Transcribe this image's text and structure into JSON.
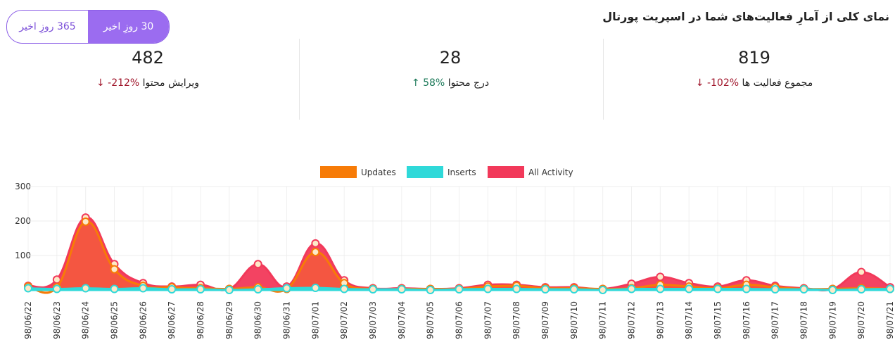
{
  "header": {
    "title": "نمای کلی از آمارِ فعالیت‌های شما در اسپریت پورتال",
    "range_options": [
      {
        "label": "365 روزِ اخیر",
        "active": false
      },
      {
        "label": "30 روزِ اخیر",
        "active": true
      }
    ]
  },
  "stats": [
    {
      "value": "819",
      "label": "مجموع فعالیت ها",
      "change": "-102%",
      "arrow": "↓",
      "direction": "down"
    },
    {
      "value": "28",
      "label": "درج محتوا",
      "change": "58%",
      "arrow": "↑",
      "direction": "up"
    },
    {
      "value": "482",
      "label": "ویرایش محتوا",
      "change": "-212%",
      "arrow": "↓",
      "direction": "down"
    }
  ],
  "chart_data": {
    "type": "area",
    "categories": [
      "98/06/22",
      "98/06/23",
      "98/06/24",
      "98/06/25",
      "98/06/26",
      "98/06/27",
      "98/06/28",
      "98/06/29",
      "98/06/30",
      "98/06/31",
      "98/07/01",
      "98/07/02",
      "98/07/03",
      "98/07/04",
      "98/07/05",
      "98/07/06",
      "98/07/07",
      "98/07/08",
      "98/07/09",
      "98/07/10",
      "98/07/11",
      "98/07/12",
      "98/07/13",
      "98/07/14",
      "98/07/15",
      "98/07/16",
      "98/07/17",
      "98/07/18",
      "98/07/19",
      "98/07/20",
      "98/07/21"
    ],
    "series": [
      {
        "name": "Updates",
        "color": "#f77b07",
        "values": [
          10,
          8,
          198,
          60,
          12,
          8,
          5,
          3,
          8,
          3,
          110,
          20,
          3,
          3,
          3,
          3,
          10,
          12,
          5,
          5,
          3,
          5,
          15,
          10,
          5,
          15,
          8,
          3,
          3,
          5,
          3
        ]
      },
      {
        "name": "Inserts",
        "color": "#2fd9d9",
        "values": [
          5,
          3,
          5,
          3,
          5,
          2,
          2,
          0,
          2,
          5,
          6,
          3,
          2,
          2,
          0,
          2,
          3,
          3,
          2,
          2,
          0,
          3,
          3,
          3,
          3,
          3,
          2,
          2,
          0,
          2,
          3
        ]
      },
      {
        "name": "All Activity",
        "color": "#f2395a",
        "values": [
          12,
          30,
          210,
          75,
          20,
          10,
          15,
          3,
          75,
          10,
          135,
          28,
          5,
          5,
          3,
          5,
          15,
          15,
          8,
          8,
          3,
          18,
          38,
          20,
          10,
          28,
          12,
          5,
          3,
          52,
          8
        ]
      }
    ],
    "ylim": [
      0,
      300
    ],
    "yticks": [
      100,
      200,
      300
    ],
    "grid": true,
    "legend": "top"
  }
}
